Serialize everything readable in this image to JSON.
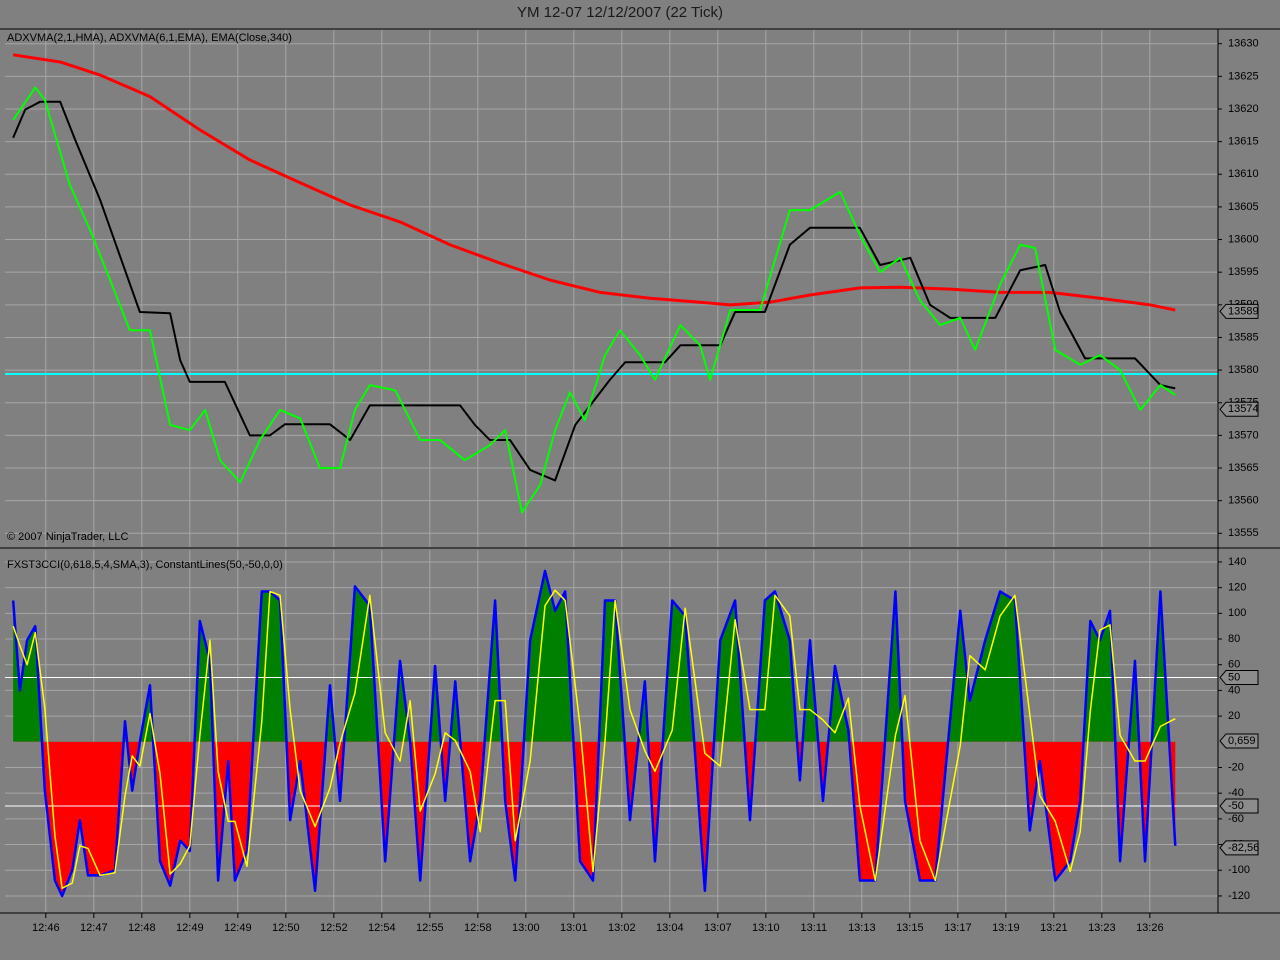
{
  "chart_data": [
    {
      "type": "line",
      "title": "YM 12-07  12/12/2007  (22 Tick)",
      "label": "ADXVMA(2,1,HMA), ADXVMA(6,1,EMA), EMA(Close,340)",
      "copyright": "© 2007 NinjaTrader, LLC",
      "xlim": [
        -0.5,
        252.2
      ],
      "ylim": [
        13552.9,
        13632.1
      ],
      "yticks": [
        13555,
        13560,
        13565,
        13570,
        13575,
        13580,
        13585,
        13590,
        13595,
        13600,
        13605,
        13610,
        13615,
        13620,
        13625,
        13630
      ],
      "grid": true,
      "hline": 13579.4,
      "hline_color": "#00ffff",
      "markers": [
        13589,
        13574
      ],
      "series": [
        {
          "color": "#ff0000",
          "width": 3,
          "x": [
            1.2,
            11.0,
            19.3,
            29.7,
            40.1,
            50.5,
            61.0,
            71.4,
            81.8,
            92.2,
            102.6,
            113.0,
            123.5,
            133.9,
            144.3,
            150.6,
            158.9,
            167.2,
            177.6,
            186.0,
            196.4,
            206.8,
            217.2,
            227.6,
            238.0,
            243.3
          ],
          "values": [
            13628.3,
            13627.2,
            13625.2,
            13621.9,
            13616.8,
            13612.2,
            13608.7,
            13605.3,
            13602.7,
            13599.2,
            13596.4,
            13593.8,
            13591.9,
            13591,
            13590.4,
            13590,
            13590.4,
            13591.5,
            13592.6,
            13592.7,
            13592.4,
            13591.9,
            13591.9,
            13591,
            13590,
            13589.2
          ]
        },
        {
          "color": "#000000",
          "width": 2,
          "x": [
            1.2,
            3.7,
            6.8,
            11.0,
            14.1,
            19.3,
            24.5,
            27.6,
            33.9,
            36.0,
            38.0,
            45.3,
            50.5,
            54.7,
            57.8,
            67.2,
            71.4,
            75.5,
            82.8,
            94.3,
            97.4,
            100.5,
            104.7,
            108.9,
            114.1,
            118.3,
            125.5,
            128.7,
            137.0,
            140.2,
            148.5,
            151.6,
            157.8,
            163.0,
            167.2,
            177.6,
            181.8,
            188.1,
            192.2,
            196.4,
            205.8,
            211.0,
            216.2,
            219.3,
            224.5,
            234.9,
            240.2,
            243.3
          ],
          "values": [
            13615.6,
            13619.9,
            13621.1,
            13621.1,
            13615.3,
            13606.1,
            13595.3,
            13588.9,
            13588.7,
            13581.5,
            13578.2,
            13578.2,
            13570,
            13570,
            13571.7,
            13571.7,
            13569.3,
            13574.6,
            13574.6,
            13574.6,
            13571.6,
            13569.3,
            13569.3,
            13564.7,
            13563.1,
            13571.6,
            13578.5,
            13581.2,
            13581.2,
            13583.8,
            13583.8,
            13588.9,
            13588.9,
            13599.2,
            13601.8,
            13601.8,
            13596.1,
            13597.2,
            13590,
            13588,
            13588,
            13595.3,
            13596.1,
            13588.9,
            13581.8,
            13581.8,
            13577.7,
            13577.2
          ]
        },
        {
          "color": "#00ff00",
          "width": 2,
          "x": [
            1.2,
            5.8,
            7.8,
            13.0,
            17.2,
            21.4,
            25.5,
            29.7,
            33.9,
            38.0,
            41.2,
            44.3,
            48.5,
            52.6,
            56.8,
            61.0,
            65.1,
            69.3,
            72.4,
            75.5,
            80.8,
            86.0,
            90.1,
            95.3,
            100.5,
            103.7,
            107.2,
            111.0,
            114.1,
            117.2,
            120.3,
            124.5,
            127.6,
            131.8,
            134.9,
            140.2,
            144.3,
            146.4,
            150.6,
            156.8,
            163.0,
            167.2,
            173.5,
            177.6,
            181.8,
            186.0,
            190.1,
            194.3,
            198.5,
            201.6,
            206.8,
            211.0,
            214.1,
            218.3,
            223.5,
            227.6,
            231.8,
            236.0,
            240.2,
            243.3
          ],
          "values": [
            13618.3,
            13623.3,
            13621.4,
            13608.4,
            13601.5,
            13593.8,
            13586.1,
            13586.1,
            13571.6,
            13570.8,
            13573.9,
            13566.2,
            13562.8,
            13569.3,
            13573.9,
            13572.6,
            13565,
            13565,
            13573.9,
            13577.7,
            13576.9,
            13569.3,
            13569.3,
            13566.2,
            13568.5,
            13570.8,
            13558.2,
            13562.4,
            13570.8,
            13576.6,
            13572.3,
            13582.3,
            13586.1,
            13582.3,
            13578.5,
            13586.9,
            13583.8,
            13578.5,
            13589.2,
            13589.2,
            13604.5,
            13604.5,
            13607.3,
            13600.7,
            13595,
            13597.2,
            13590.7,
            13586.9,
            13588,
            13583.1,
            13593.1,
            13599.2,
            13598.7,
            13583.1,
            13580.8,
            13582.3,
            13580,
            13573.9,
            13577.7,
            13576.2
          ]
        }
      ]
    },
    {
      "type": "oscillator",
      "label": "FXST3CCI(0,618,5,4,SMA,3), ConstantLines(50,-50,0,0)",
      "xlim": [
        -0.5,
        252.2
      ],
      "ylim": [
        -132.5,
        149.3
      ],
      "yticks": [
        140,
        120,
        100,
        80,
        60,
        40,
        20,
        -20,
        -40,
        -60,
        -80,
        -100,
        -120
      ],
      "grid": true,
      "xticks": [
        {
          "value": 8,
          "label": "12:46"
        },
        {
          "value": 18,
          "label": "12:47"
        },
        {
          "value": 28,
          "label": "12:48"
        },
        {
          "value": 38,
          "label": "12:49"
        },
        {
          "value": 48,
          "label": "12:49"
        },
        {
          "value": 58,
          "label": "12:50"
        },
        {
          "value": 68,
          "label": "12:52"
        },
        {
          "value": 78,
          "label": "12:54"
        },
        {
          "value": 88,
          "label": "12:55"
        },
        {
          "value": 98,
          "label": "12:58"
        },
        {
          "value": 108,
          "label": "13:00"
        },
        {
          "value": 118,
          "label": "13:01"
        },
        {
          "value": 128,
          "label": "13:02"
        },
        {
          "value": 138,
          "label": "13:04"
        },
        {
          "value": 148,
          "label": "13:07"
        },
        {
          "value": 158,
          "label": "13:10"
        },
        {
          "value": 168,
          "label": "13:11"
        },
        {
          "value": 178,
          "label": "13:13"
        },
        {
          "value": 188,
          "label": "13:15"
        },
        {
          "value": 198,
          "label": "13:17"
        },
        {
          "value": 208,
          "label": "13:19"
        },
        {
          "value": 218,
          "label": "13:21"
        },
        {
          "value": 228,
          "label": "13:23"
        },
        {
          "value": 238,
          "label": "13:26"
        }
      ],
      "constant_lines": [
        50,
        -50
      ],
      "markers": [
        50,
        {
          "value": 0.659,
          "label": "0,659"
        },
        -50,
        {
          "value": -82.56,
          "label": "-82,56"
        }
      ],
      "fill_colors": [
        "#008000",
        "#ff0000"
      ],
      "x": [
        1.2,
        2.6,
        4.1,
        5.8,
        7.8,
        9.9,
        11.4,
        13.5,
        15.1,
        16.8,
        19.3,
        22.4,
        24.5,
        26.0,
        27.6,
        29.7,
        31.8,
        33.9,
        36.0,
        38.0,
        40.1,
        42.2,
        43.9,
        46.0,
        47.4,
        49.9,
        53.0,
        54.7,
        56.8,
        58.9,
        61.0,
        64.1,
        67.2,
        69.3,
        72.4,
        75.5,
        78.7,
        81.8,
        83.9,
        86.0,
        89.1,
        91.2,
        93.3,
        96.4,
        98.5,
        101.6,
        103.7,
        105.8,
        108.9,
        112.0,
        114.1,
        116.2,
        119.3,
        122.0,
        124.5,
        126.6,
        129.7,
        132.8,
        134.9,
        138.5,
        141.2,
        145.3,
        148.5,
        151.6,
        154.7,
        157.8,
        159.9,
        163.0,
        165.1,
        167.2,
        169.9,
        172.4,
        175.2,
        177.6,
        180.8,
        185.0,
        187.0,
        190.1,
        193.3,
        198.5,
        200.5,
        203.7,
        206.8,
        209.9,
        213.0,
        215.1,
        218.3,
        221.4,
        223.5,
        225.6,
        227.6,
        229.7,
        231.8,
        234.9,
        237.0,
        240.2,
        243.3
      ],
      "series": [
        {
          "color": "#0000ff",
          "width": 2.5,
          "fill": true,
          "values": [
            110,
            40,
            79,
            90,
            -38,
            -108,
            -120,
            -100,
            -61,
            -104,
            -104,
            -100,
            16,
            -38,
            0,
            44,
            -93,
            -112,
            -77,
            -85,
            94,
            63,
            -108,
            -15,
            -108,
            -85,
            117,
            117,
            110,
            -61,
            -15,
            -116,
            44,
            -46,
            121,
            106,
            -93,
            63,
            0,
            -108,
            59,
            -46,
            47,
            -93,
            -46,
            110,
            -46,
            -108,
            79,
            133,
            102,
            117,
            -93,
            -108,
            110,
            110,
            -61,
            47,
            -93,
            110,
            98,
            -116,
            79,
            110,
            -61,
            110,
            117,
            79,
            -30,
            79,
            -46,
            59,
            9,
            -108,
            -108,
            117,
            -46,
            -108,
            -108,
            102,
            32,
            79,
            117,
            110,
            -69,
            -15,
            -108,
            -93,
            -46,
            94,
            79,
            102,
            -93,
            63,
            -93,
            117,
            -81
          ]
        },
        {
          "color": "#ffff00",
          "width": 1.5,
          "values": [
            90,
            75,
            60,
            85,
            26,
            -73,
            -114,
            -110,
            -81,
            -83,
            -104,
            -102,
            -42,
            -11,
            -19,
            22,
            -25,
            -103,
            -95,
            -81,
            5,
            79,
            -23,
            -62,
            -62,
            -97,
            16,
            117,
            114,
            25,
            -38,
            -66,
            -36,
            -1,
            38,
            114,
            7,
            -15,
            32,
            -54,
            -25,
            7,
            1,
            -23,
            -70,
            32,
            32,
            -77,
            -15,
            106,
            118,
            110,
            12,
            -101,
            1,
            110,
            25,
            -7,
            -23,
            9,
            104,
            -9,
            -19,
            95,
            25,
            25,
            114,
            98,
            25,
            25,
            17,
            7,
            34,
            -50,
            -108,
            5,
            36,
            -77,
            -108,
            -3,
            67,
            56,
            98,
            114,
            21,
            -42,
            -62,
            -101,
            -70,
            24,
            87,
            91,
            5,
            -15,
            -15,
            12,
            18
          ]
        }
      ]
    }
  ]
}
